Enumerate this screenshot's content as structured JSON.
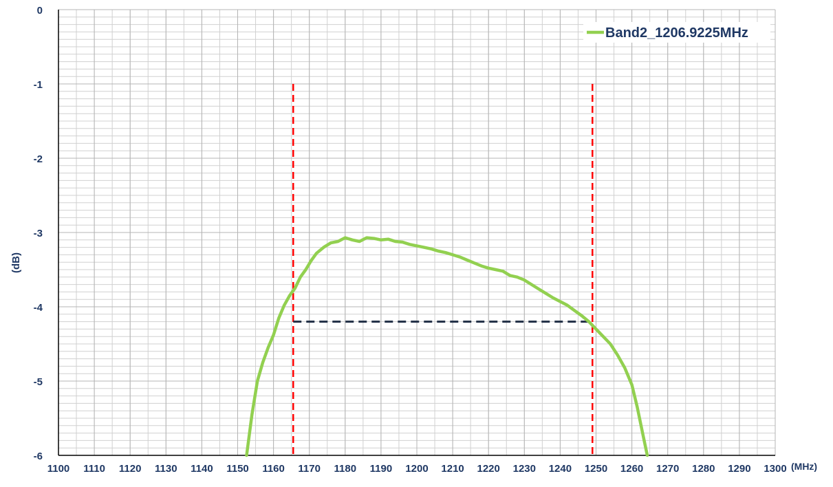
{
  "chart_data": {
    "type": "line",
    "title": "",
    "xlabel": "(MHz)",
    "ylabel": "(dB)",
    "xlim": [
      1100,
      1300
    ],
    "ylim": [
      -6,
      0
    ],
    "x_ticks": [
      1100,
      1110,
      1120,
      1130,
      1140,
      1150,
      1160,
      1170,
      1180,
      1190,
      1200,
      1210,
      1220,
      1230,
      1240,
      1250,
      1260,
      1270,
      1280,
      1290,
      1300
    ],
    "y_ticks": [
      0,
      -1,
      -2,
      -3,
      -4,
      -5,
      -6
    ],
    "grid": true,
    "legend_position": "top-right",
    "series": [
      {
        "name": "Band2_1206.9225MHz",
        "color": "#92d050",
        "x": [
          1152.5,
          1154,
          1155.5,
          1157,
          1158.5,
          1160,
          1161.5,
          1163,
          1164.5,
          1166,
          1167.5,
          1169,
          1170.5,
          1172,
          1174,
          1176,
          1178,
          1180,
          1182,
          1184,
          1186,
          1188,
          1190,
          1192,
          1194,
          1196,
          1198,
          1200,
          1202,
          1204,
          1206,
          1208,
          1210,
          1212,
          1214,
          1216,
          1218,
          1220,
          1222,
          1224,
          1226,
          1228,
          1230,
          1232,
          1234,
          1236,
          1238,
          1240,
          1242,
          1244,
          1246,
          1248,
          1250,
          1252,
          1254,
          1256,
          1258,
          1260,
          1261.5,
          1263,
          1264.3
        ],
        "y": [
          -6.0,
          -5.45,
          -5.0,
          -4.75,
          -4.55,
          -4.38,
          -4.15,
          -3.98,
          -3.85,
          -3.75,
          -3.6,
          -3.5,
          -3.38,
          -3.28,
          -3.2,
          -3.14,
          -3.12,
          -3.07,
          -3.1,
          -3.12,
          -3.07,
          -3.08,
          -3.1,
          -3.09,
          -3.12,
          -3.13,
          -3.16,
          -3.18,
          -3.2,
          -3.22,
          -3.25,
          -3.27,
          -3.3,
          -3.33,
          -3.37,
          -3.41,
          -3.45,
          -3.48,
          -3.5,
          -3.52,
          -3.58,
          -3.6,
          -3.64,
          -3.7,
          -3.76,
          -3.82,
          -3.88,
          -3.93,
          -3.98,
          -4.05,
          -4.12,
          -4.2,
          -4.3,
          -4.4,
          -4.5,
          -4.65,
          -4.82,
          -5.05,
          -5.35,
          -5.7,
          -6.0
        ]
      }
    ],
    "annotations": [
      {
        "kind": "vertical-dashed-line",
        "color": "#ff0000",
        "x": 1165.5,
        "y_from": -1,
        "y_to": -6
      },
      {
        "kind": "vertical-dashed-line",
        "color": "#ff0000",
        "x": 1249,
        "y_from": -1,
        "y_to": -6
      },
      {
        "kind": "horizontal-dashed-line",
        "color": "#1f2d44",
        "y": -4.2,
        "x_from": 1165.5,
        "x_to": 1249
      }
    ]
  }
}
